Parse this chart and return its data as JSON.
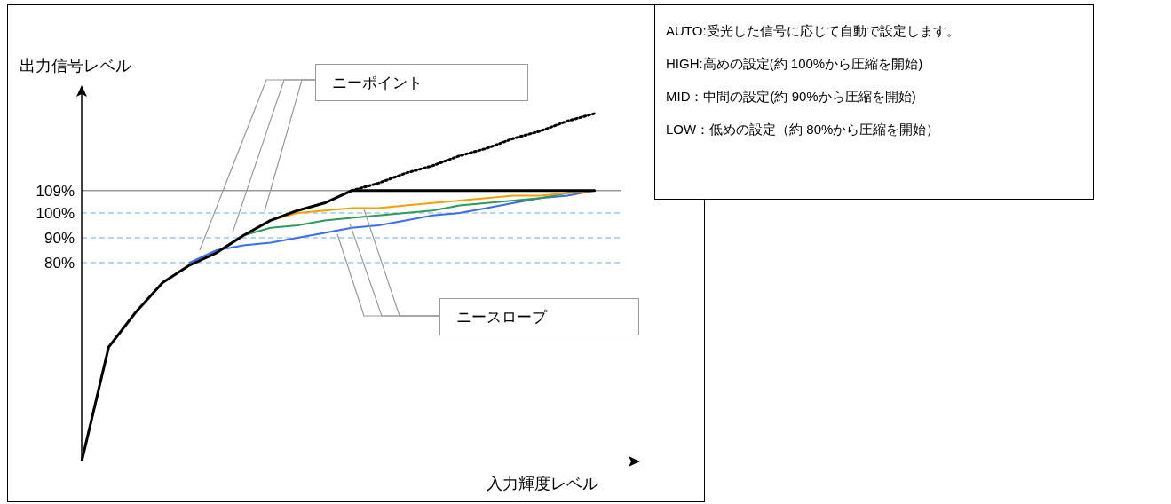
{
  "chart_data": {
    "type": "line",
    "xlabel": "入力輝度レベル",
    "ylabel": "出力信号レベル",
    "categories": [
      null,
      null,
      null,
      null,
      null,
      null,
      null,
      null,
      null,
      null,
      null,
      null,
      null,
      null,
      null,
      null,
      null,
      null,
      null,
      null
    ],
    "series": [
      {
        "color": "#3b6cf0",
        "values": [
          null,
          null,
          null,
          null,
          80,
          85,
          87,
          88,
          90,
          92,
          94,
          95,
          97,
          99,
          100,
          102,
          104,
          106,
          107,
          109
        ]
      },
      {
        "color": "#2e9a5c",
        "values": [
          null,
          null,
          null,
          null,
          null,
          null,
          91,
          94,
          95,
          97,
          98,
          99,
          100,
          101,
          103,
          104,
          105,
          106,
          108,
          109
        ]
      },
      {
        "color": "#f5a000",
        "values": [
          null,
          null,
          null,
          null,
          null,
          null,
          null,
          97,
          100,
          101,
          102,
          102,
          103,
          104,
          105,
          106,
          107,
          107,
          108,
          109
        ]
      },
      {
        "color": "#000000",
        "values": [
          0,
          46,
          60,
          72,
          79,
          84,
          91,
          97,
          101,
          104,
          109,
          109,
          109,
          109,
          109,
          109,
          109,
          109,
          109,
          109
        ]
      },
      {
        "color": "#000000",
        "line_style": "dotted",
        "values": [
          null,
          null,
          null,
          null,
          null,
          null,
          null,
          null,
          null,
          null,
          109,
          112,
          116,
          119,
          123,
          126,
          130,
          133,
          137,
          140
        ]
      }
    ],
    "ylim": [
      0,
      150
    ],
    "yticks": [
      {
        "value": 80,
        "label": "80%"
      },
      {
        "value": 90,
        "label": "90%"
      },
      {
        "value": 100,
        "label": "100%"
      },
      {
        "value": 109,
        "label": "109%"
      }
    ],
    "tick_labels": "y",
    "ref_lines": [
      {
        "axis": "y",
        "value": 109,
        "color": "#999999",
        "line_style": "solid"
      },
      {
        "axis": "y",
        "value": 100,
        "color": "#9cc8f0",
        "line_style": "dashed"
      },
      {
        "axis": "y",
        "value": 90,
        "color": "#9cc8f0",
        "line_style": "dashed"
      },
      {
        "axis": "y",
        "value": 80,
        "color": "#9cc8f0",
        "line_style": "dashed"
      }
    ],
    "annotations": [
      "ニーポイント",
      "ニースロープ",
      "AUTO:受光した信号に応じて自動で設定します。",
      "HIGH:高めの設定(約 100%から圧縮を開始)",
      "MID：中間の設定(約 90%から圧縮を開始)",
      "LOW：低めの設定（約 80%から圧縮を開始）"
    ]
  }
}
